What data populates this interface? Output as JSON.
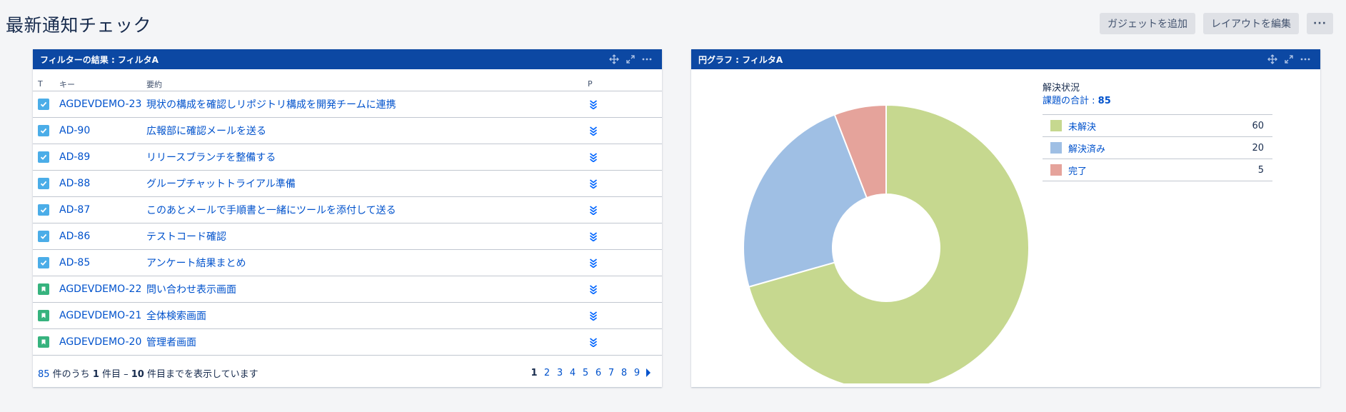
{
  "page": {
    "title": "最新通知チェック",
    "actions": {
      "add_gadget": "ガジェットを追加",
      "edit_layout": "レイアウトを編集",
      "more": "···"
    }
  },
  "filter_gadget": {
    "title": "フィルターの結果 : フィルタA",
    "columns": {
      "type": "T",
      "key": "キー",
      "summary": "要約",
      "priority": "P"
    },
    "rows": [
      {
        "type": "task",
        "key": "AGDEVDEMO-23",
        "summary": "現状の構成を確認しリポジトリ構成を開発チームに連携"
      },
      {
        "type": "task",
        "key": "AD-90",
        "summary": "広報部に確認メールを送る"
      },
      {
        "type": "task",
        "key": "AD-89",
        "summary": "リリースブランチを整備する"
      },
      {
        "type": "task",
        "key": "AD-88",
        "summary": "グループチャットトライアル準備"
      },
      {
        "type": "task",
        "key": "AD-87",
        "summary": "このあとメールで手順書と一緒にツールを添付して送る"
      },
      {
        "type": "task",
        "key": "AD-86",
        "summary": "テストコード確認"
      },
      {
        "type": "task",
        "key": "AD-85",
        "summary": "アンケート結果まとめ"
      },
      {
        "type": "story",
        "key": "AGDEVDEMO-22",
        "summary": "問い合わせ表示画面"
      },
      {
        "type": "story",
        "key": "AGDEVDEMO-21",
        "summary": "全体検索画面"
      },
      {
        "type": "story",
        "key": "AGDEVDEMO-20",
        "summary": "管理者画面"
      }
    ],
    "footer": {
      "total": "85",
      "text1": " 件のうち ",
      "from": "1",
      "text2": " 件目 – ",
      "to": "10",
      "text3": " 件目までを表示しています"
    },
    "pages": [
      "1",
      "2",
      "3",
      "4",
      "5",
      "6",
      "7",
      "8",
      "9"
    ],
    "current_page": "1"
  },
  "pie_gadget": {
    "title": "円グラフ : フィルタA",
    "legend_title": "解決状況",
    "total_label": "課題の合計 : ",
    "total_value": "85"
  },
  "chart_data": {
    "type": "pie",
    "donut": true,
    "categories": [
      "未解決",
      "解決済み",
      "完了"
    ],
    "values": [
      60,
      20,
      5
    ],
    "colors": [
      "#c6d88f",
      "#9fbfe4",
      "#e5a39b"
    ]
  },
  "colors": {
    "header_blue": "#0c48a3",
    "link": "#0052cc"
  }
}
